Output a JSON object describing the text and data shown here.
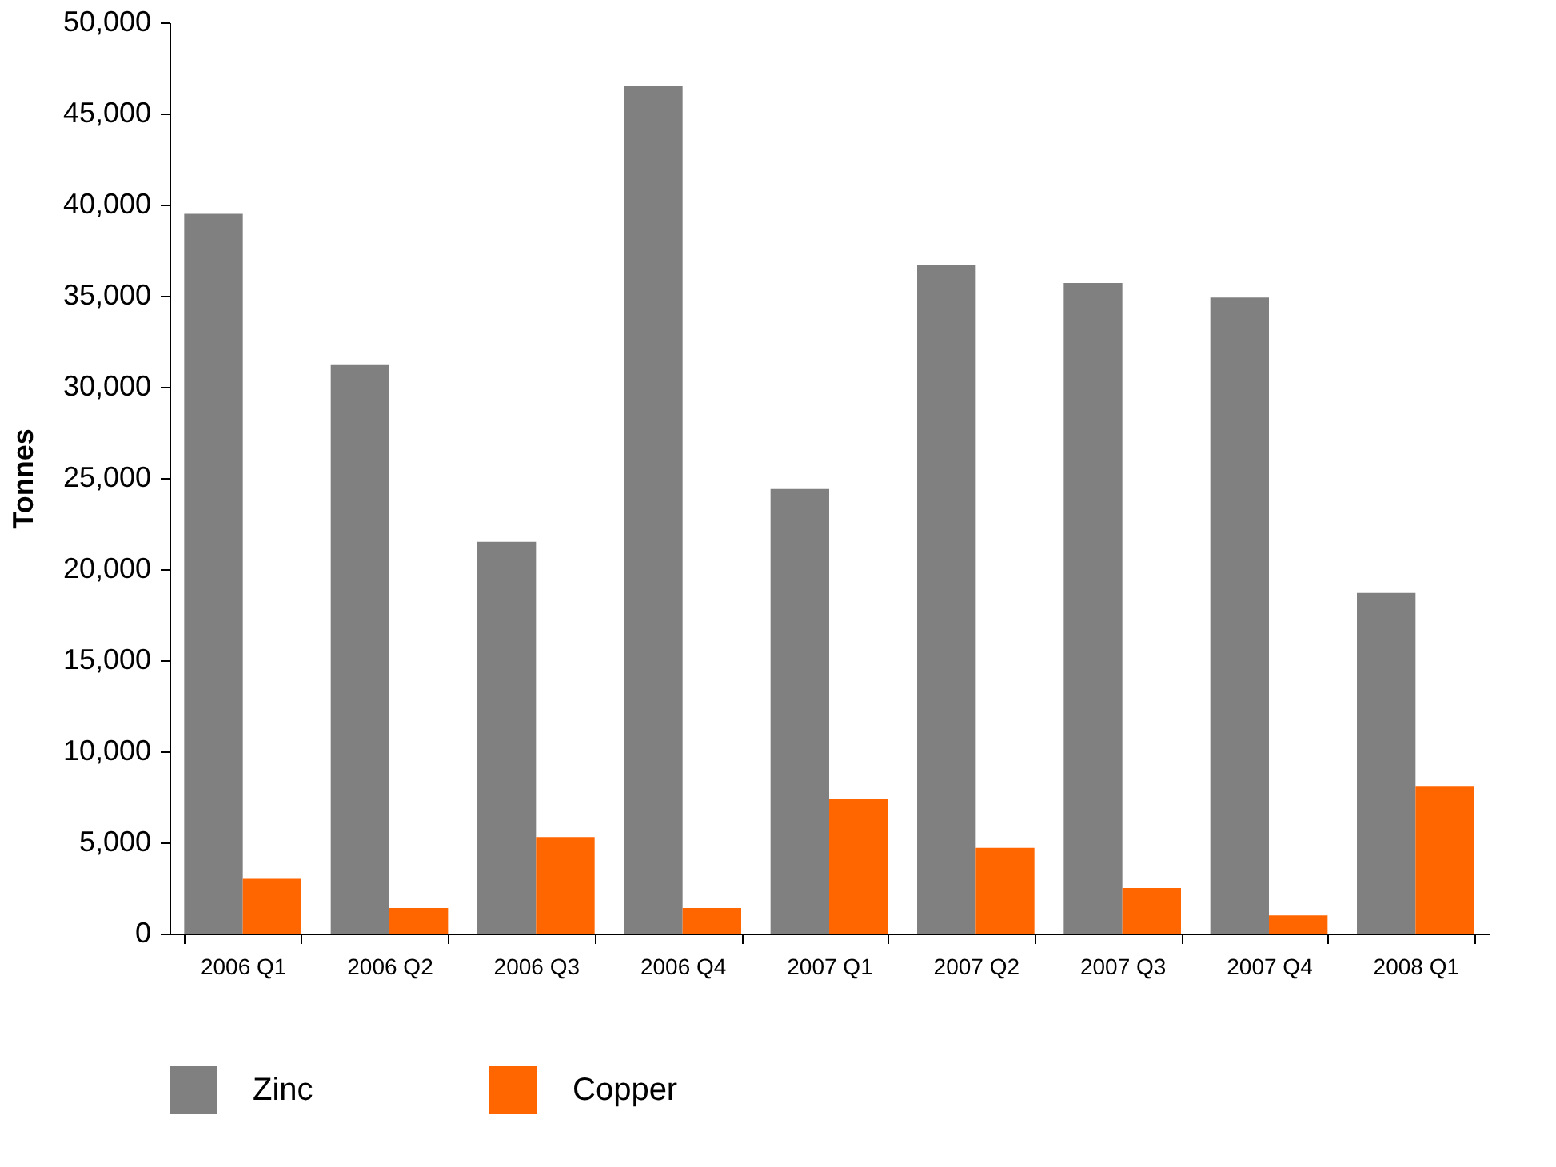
{
  "chart_data": {
    "type": "bar",
    "ylabel": "Tonnes",
    "categories": [
      "2006 Q1",
      "2006 Q2",
      "2006 Q3",
      "2006 Q4",
      "2007 Q1",
      "2007 Q2",
      "2007 Q3",
      "2007 Q4",
      "2008 Q1"
    ],
    "series": [
      {
        "name": "Zinc",
        "color": "#808080",
        "values": [
          39500,
          31200,
          21500,
          46500,
          24400,
          36700,
          35700,
          34900,
          18700
        ]
      },
      {
        "name": "Copper",
        "color": "#ff6600",
        "values": [
          3000,
          1400,
          5300,
          1400,
          7400,
          4700,
          2500,
          1000,
          8100
        ]
      }
    ],
    "ylim": [
      0,
      50000
    ],
    "yticks": [
      0,
      {
        "value": 5000,
        "label": "5,000"
      },
      {
        "value": 10000,
        "label": "10,000"
      },
      {
        "value": 15000,
        "label": "15,000"
      },
      {
        "value": 20000,
        "label": "20,000"
      },
      {
        "value": 25000,
        "label": "25,000"
      },
      {
        "value": 30000,
        "label": "30,000"
      },
      {
        "value": 35000,
        "label": "35,000"
      },
      {
        "value": 40000,
        "label": "40,000"
      },
      {
        "value": 45000,
        "label": "45,000"
      },
      {
        "value": 50000,
        "label": "50,000"
      }
    ],
    "grid": false,
    "legend": "bottom"
  }
}
